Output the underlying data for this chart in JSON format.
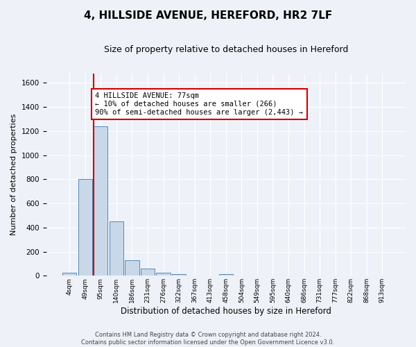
{
  "title": "4, HILLSIDE AVENUE, HEREFORD, HR2 7LF",
  "subtitle": "Size of property relative to detached houses in Hereford",
  "xlabel": "Distribution of detached houses by size in Hereford",
  "ylabel": "Number of detached properties",
  "bin_labels": [
    "4sqm",
    "49sqm",
    "95sqm",
    "140sqm",
    "186sqm",
    "231sqm",
    "276sqm",
    "322sqm",
    "367sqm",
    "413sqm",
    "458sqm",
    "504sqm",
    "549sqm",
    "595sqm",
    "640sqm",
    "686sqm",
    "731sqm",
    "777sqm",
    "822sqm",
    "868sqm",
    "913sqm"
  ],
  "bar_heights": [
    25,
    800,
    1240,
    450,
    130,
    60,
    25,
    15,
    0,
    0,
    15,
    0,
    0,
    0,
    0,
    0,
    0,
    0,
    0,
    0,
    0
  ],
  "bar_color": "#c8d8e8",
  "bar_edge_color": "#5588bb",
  "ylim": [
    0,
    1680
  ],
  "yticks": [
    0,
    200,
    400,
    600,
    800,
    1000,
    1200,
    1400,
    1600
  ],
  "property_line_x": 1.55,
  "property_line_color": "#cc0000",
  "annotation_text": "4 HILLSIDE AVENUE: 77sqm\n← 10% of detached houses are smaller (266)\n90% of semi-detached houses are larger (2,443) →",
  "annotation_box_color": "#ffffff",
  "annotation_box_edge": "#cc0000",
  "footnote": "Contains HM Land Registry data © Crown copyright and database right 2024.\nContains public sector information licensed under the Open Government Licence v3.0.",
  "background_color": "#eef2f8",
  "grid_color": "#ffffff",
  "title_fontsize": 11,
  "subtitle_fontsize": 9
}
